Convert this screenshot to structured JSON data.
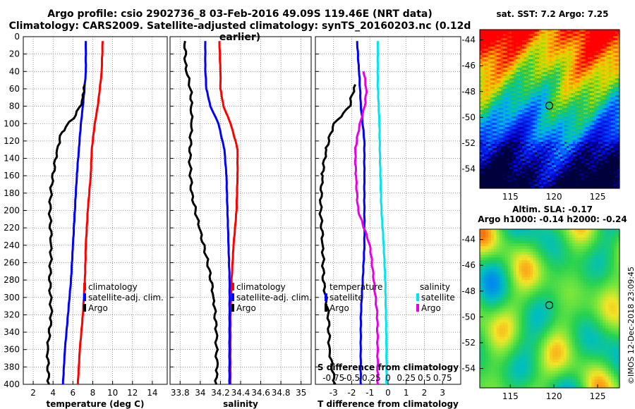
{
  "title_line1": "Argo profile: csio 2902736_8 03-Feb-2016 49.09S 119.46E (NRT data)",
  "title_line2": "Climatology: CARS2009. Satellite-adjusted climatology: synTS_20160203.nc (0.12d earlier)",
  "watermark": "©IMOS 12-Dec-2018 23:09:45",
  "colors": {
    "climatology": "#ff0000",
    "satellite": "#0000ff",
    "argo": "#000000",
    "cyan": "#00e5ee",
    "magenta": "#e600e6",
    "marker": "#000000"
  },
  "chart_data": [
    {
      "type": "line",
      "name": "temperature",
      "xlabel": "temperature (deg C)",
      "ylabel": "",
      "xlim": [
        1,
        15.5
      ],
      "ylim": [
        0,
        400
      ],
      "xticks": [
        "2",
        "4",
        "6",
        "8",
        "10",
        "12",
        "14"
      ],
      "xtick_values": [
        2,
        4,
        6,
        8,
        10,
        12,
        14
      ],
      "yticks": [
        0,
        20,
        40,
        60,
        80,
        100,
        120,
        140,
        160,
        180,
        200,
        220,
        240,
        260,
        280,
        300,
        320,
        340,
        360,
        380,
        400
      ],
      "legend": [
        "climatology",
        "satellite-adj. clim.",
        "Argo"
      ],
      "series": [
        {
          "name": "climatology",
          "color": "#ff0000",
          "depth": [
            5,
            40,
            80,
            100,
            130,
            160,
            200,
            240,
            280,
            320,
            360,
            400
          ],
          "values": [
            9.0,
            8.9,
            8.5,
            8.2,
            7.9,
            7.8,
            7.5,
            7.3,
            7.2,
            7.0,
            6.7,
            6.5
          ]
        },
        {
          "name": "satellite-adj. clim.",
          "color": "#0000ff",
          "depth": [
            5,
            40,
            80,
            100,
            130,
            160,
            200,
            240,
            280,
            320,
            360,
            400
          ],
          "values": [
            7.3,
            7.3,
            7.0,
            6.8,
            6.6,
            6.4,
            6.2,
            6.0,
            5.8,
            5.5,
            5.2,
            5.0
          ]
        },
        {
          "name": "Argo",
          "color": "#000000",
          "depth": [
            55,
            70,
            90,
            100,
            110,
            130,
            150,
            170,
            200,
            240,
            280,
            320,
            360,
            400
          ],
          "values": [
            7.2,
            7.0,
            6.3,
            5.5,
            4.9,
            4.4,
            4.2,
            3.9,
            3.7,
            3.8,
            3.6,
            3.8,
            3.5,
            3.6
          ]
        }
      ]
    },
    {
      "type": "line",
      "name": "salinity",
      "xlabel": "salinity",
      "ylabel": "",
      "xlim": [
        33.7,
        35.1
      ],
      "ylim": [
        0,
        400
      ],
      "xticks": [
        "33.8",
        "34",
        "34.2",
        "34.4",
        "34.6",
        "34.8",
        "35"
      ],
      "xtick_values": [
        33.8,
        34.0,
        34.2,
        34.4,
        34.6,
        34.8,
        35.0
      ],
      "legend": [
        "climatology",
        "satellite-adj. clim.",
        "Argo"
      ],
      "series": [
        {
          "name": "climatology",
          "color": "#ff0000",
          "depth": [
            5,
            40,
            60,
            80,
            100,
            120,
            130,
            160,
            200,
            240,
            280,
            320,
            360,
            400
          ],
          "values": [
            34.19,
            34.2,
            34.2,
            34.23,
            34.3,
            34.35,
            34.37,
            34.37,
            34.36,
            34.33,
            34.31,
            34.3,
            34.3,
            34.3
          ],
          "comment": ""
        },
        {
          "name": "satellite-adj. clim.",
          "color": "#0000ff",
          "depth": [
            5,
            40,
            60,
            80,
            100,
            130,
            160,
            200,
            240,
            280,
            320,
            360,
            400
          ],
          "values": [
            34.05,
            34.05,
            34.06,
            34.1,
            34.18,
            34.24,
            34.26,
            34.27,
            34.28,
            34.29,
            34.29,
            34.29,
            34.29
          ]
        },
        {
          "name": "Argo",
          "color": "#000000",
          "depth": [
            5,
            40,
            60,
            80,
            100,
            140,
            180,
            220,
            260,
            300,
            340,
            380,
            400
          ],
          "values": [
            33.85,
            33.86,
            33.9,
            33.91,
            33.91,
            33.9,
            33.92,
            33.99,
            34.07,
            34.13,
            34.16,
            34.17,
            34.16
          ]
        }
      ]
    },
    {
      "type": "line",
      "name": "difference",
      "xlabel": "T difference from climatology",
      "xlabel2": "S difference from climatology",
      "xlim": [
        -4,
        4
      ],
      "ylim": [
        0,
        400
      ],
      "xticks": [
        "-3",
        "-2",
        "-1",
        "0",
        "1",
        "2",
        "3"
      ],
      "xtick_values": [
        -3,
        -2,
        -1,
        0,
        1,
        2,
        3
      ],
      "xticks2": [
        "-0.75",
        "-0.5",
        "-0.25",
        "0",
        "0.25",
        "0.5",
        "0.75"
      ],
      "legend_left": {
        "title": "temperature",
        "items": [
          "satellite",
          "Argo"
        ]
      },
      "legend_right": {
        "title": "salinity",
        "items": [
          "satellite",
          "Argo"
        ]
      },
      "series": [
        {
          "name": "T satellite",
          "color": "#0000ff",
          "depth": [
            5,
            40,
            80,
            120,
            160,
            200,
            240,
            280,
            320,
            360,
            400
          ],
          "values": [
            -1.7,
            -1.6,
            -1.5,
            -1.3,
            -1.3,
            -1.3,
            -1.3,
            -1.4,
            -1.5,
            -1.5,
            -1.5
          ]
        },
        {
          "name": "T Argo",
          "color": "#000000",
          "depth": [
            55,
            80,
            100,
            130,
            160,
            200,
            240,
            280,
            320,
            360,
            400
          ],
          "values": [
            -1.8,
            -2.1,
            -3.0,
            -3.4,
            -3.6,
            -3.7,
            -3.6,
            -3.6,
            -3.3,
            -3.2,
            -2.9
          ]
        },
        {
          "name": "S satellite",
          "color": "#00e5ee",
          "depth": [
            5,
            60,
            100,
            140,
            200,
            240,
            280,
            320,
            360,
            400
          ],
          "values": [
            -0.14,
            -0.14,
            -0.12,
            -0.11,
            -0.09,
            -0.06,
            -0.04,
            -0.03,
            -0.02,
            -0.02
          ]
        },
        {
          "name": "S Argo",
          "color": "#e600e6",
          "depth": [
            40,
            60,
            80,
            100,
            130,
            160,
            200,
            240,
            280,
            320,
            360,
            400
          ],
          "values": [
            -0.34,
            -0.3,
            -0.32,
            -0.39,
            -0.45,
            -0.44,
            -0.41,
            -0.25,
            -0.2,
            -0.15,
            -0.14,
            -0.14
          ]
        }
      ]
    },
    {
      "type": "heatmap",
      "name": "sst_map",
      "title": "sat. SST: 7.2 Argo: 7.25",
      "xticks": [
        "115",
        "120",
        "125"
      ],
      "yticks": [
        "-44",
        "-46",
        "-48",
        "-50",
        "-52",
        "-54"
      ],
      "lon_range": [
        111.5,
        127.5
      ],
      "lat_range": [
        -55.5,
        -43.2
      ],
      "profile_lon": 119.46,
      "profile_lat": -49.09
    },
    {
      "type": "heatmap",
      "name": "sla_map",
      "title1": "Altim. SLA: -0.17",
      "title2": "Argo h1000: -0.14 h2000: -0.24",
      "xticks": [
        "115",
        "120",
        "125"
      ],
      "yticks": [
        "-44",
        "-46",
        "-48",
        "-50",
        "-52",
        "-54"
      ],
      "lon_range": [
        111.5,
        127.5
      ],
      "lat_range": [
        -55.5,
        -43.2
      ],
      "profile_lon": 119.46,
      "profile_lat": -49.09
    }
  ]
}
